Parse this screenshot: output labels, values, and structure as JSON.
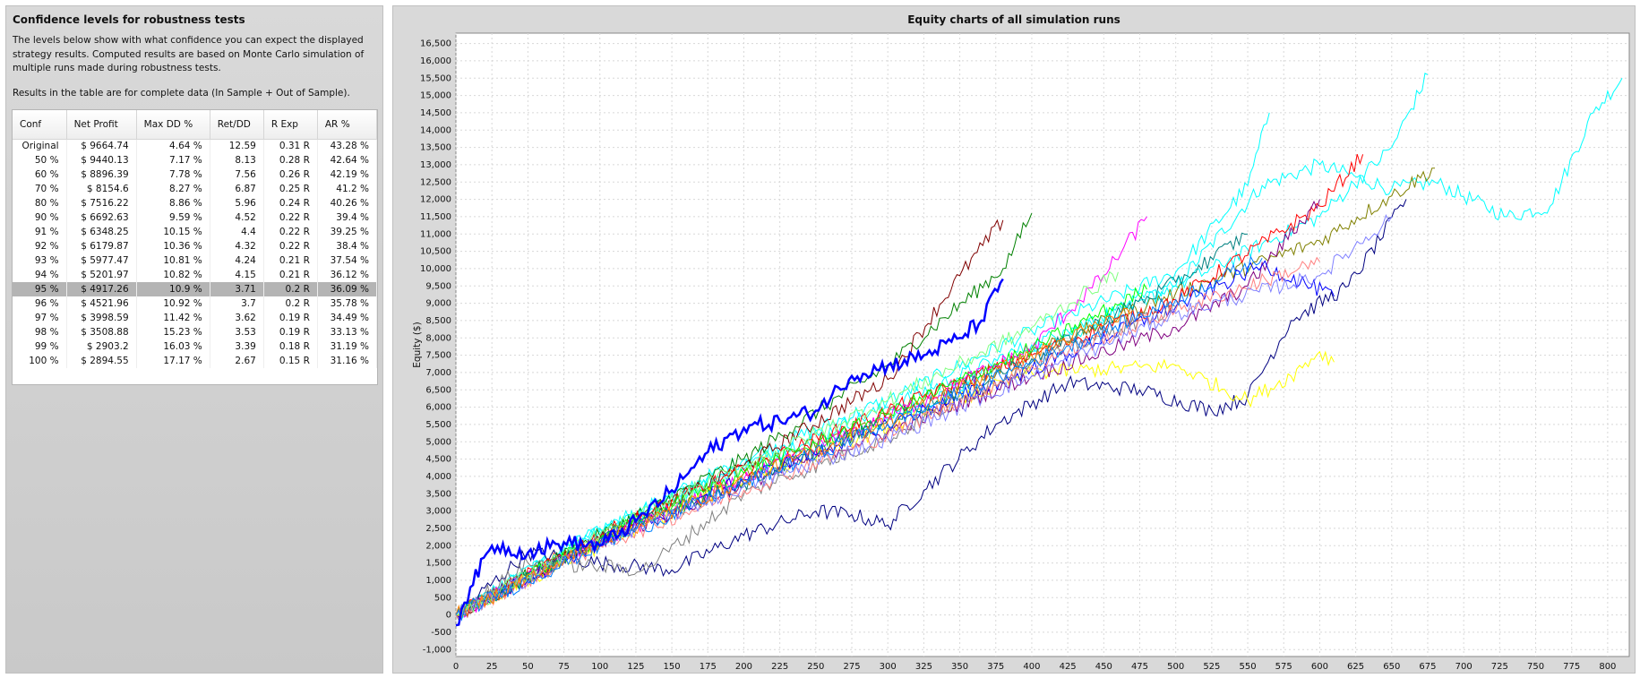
{
  "left": {
    "title": "Confidence levels for robustness tests",
    "description": "The levels below show with what confidence you can expect the displayed strategy results. Computed results are based on Monte Carlo simulation of multiple runs made during robustness tests.",
    "note": "Results in the table are for complete data (In Sample + Out of Sample).",
    "table": {
      "columns": [
        "Conf",
        "Net Profit",
        "Max DD %",
        "Ret/DD",
        "R Exp",
        "AR %"
      ],
      "selected_row": 10,
      "rows": [
        [
          "Original",
          "$ 9664.74",
          "4.64 %",
          "12.59",
          "0.31 R",
          "43.28 %"
        ],
        [
          "50 %",
          "$ 9440.13",
          "7.17 %",
          "8.13",
          "0.28 R",
          "42.64 %"
        ],
        [
          "60 %",
          "$ 8896.39",
          "7.78 %",
          "7.56",
          "0.26 R",
          "42.19 %"
        ],
        [
          "70 %",
          "$ 8154.6",
          "8.27 %",
          "6.87",
          "0.25 R",
          "41.2 %"
        ],
        [
          "80 %",
          "$ 7516.22",
          "8.86 %",
          "5.96",
          "0.24 R",
          "40.26 %"
        ],
        [
          "90 %",
          "$ 6692.63",
          "9.59 %",
          "4.52",
          "0.22 R",
          "39.4 %"
        ],
        [
          "91 %",
          "$ 6348.25",
          "10.15 %",
          "4.4",
          "0.22 R",
          "39.25 %"
        ],
        [
          "92 %",
          "$ 6179.87",
          "10.36 %",
          "4.32",
          "0.22 R",
          "38.4 %"
        ],
        [
          "93 %",
          "$ 5977.47",
          "10.81 %",
          "4.24",
          "0.21 R",
          "37.54 %"
        ],
        [
          "94 %",
          "$ 5201.97",
          "10.82 %",
          "4.15",
          "0.21 R",
          "36.12 %"
        ],
        [
          "95 %",
          "$ 4917.26",
          "10.9 %",
          "3.71",
          "0.2 R",
          "36.09 %"
        ],
        [
          "96 %",
          "$ 4521.96",
          "10.92 %",
          "3.7",
          "0.2 R",
          "35.78 %"
        ],
        [
          "97 %",
          "$ 3998.59",
          "11.42 %",
          "3.62",
          "0.19 R",
          "34.49 %"
        ],
        [
          "98 %",
          "$ 3508.88",
          "15.23 %",
          "3.53",
          "0.19 R",
          "33.13 %"
        ],
        [
          "99 %",
          "$ 2903.2",
          "16.03 %",
          "3.39",
          "0.18 R",
          "31.19 %"
        ],
        [
          "100 %",
          "$ 2894.55",
          "17.17 %",
          "2.67",
          "0.15 R",
          "31.16 %"
        ]
      ]
    }
  },
  "chart": {
    "title": "Equity charts of all simulation runs"
  },
  "chart_data": {
    "type": "line",
    "title": "Equity charts of all simulation runs",
    "xlabel": "",
    "ylabel": "Equity ($)",
    "xlim": [
      0,
      815
    ],
    "ylim": [
      -1200,
      16800
    ],
    "xticks": [
      0,
      25,
      50,
      75,
      100,
      125,
      150,
      175,
      200,
      225,
      250,
      275,
      300,
      325,
      350,
      375,
      400,
      425,
      450,
      475,
      500,
      525,
      550,
      575,
      600,
      625,
      650,
      675,
      700,
      725,
      750,
      775,
      800
    ],
    "yticks": [
      -1000,
      -500,
      0,
      500,
      1000,
      1500,
      2000,
      2500,
      3000,
      3500,
      4000,
      4500,
      5000,
      5500,
      6000,
      6500,
      7000,
      7500,
      8000,
      8500,
      9000,
      9500,
      10000,
      10500,
      11000,
      11500,
      12000,
      12500,
      13000,
      13500,
      14000,
      14500,
      15000,
      15500,
      16000,
      16500
    ],
    "grid": true,
    "highlight_series": {
      "name": "",
      "color": "#0000ff",
      "x": [
        0,
        10,
        25,
        50,
        75,
        100,
        125,
        150,
        175,
        200,
        225,
        250,
        275,
        300,
        325,
        350,
        365,
        380
      ],
      "y": [
        -300,
        800,
        2000,
        1800,
        2100,
        2000,
        2700,
        3600,
        4700,
        5400,
        5600,
        5900,
        6900,
        7200,
        7500,
        8000,
        8500,
        9700
      ]
    },
    "series": [
      {
        "color": "#00ffff",
        "x": [
          0,
          100,
          200,
          300,
          400,
          500,
          560,
          600,
          650,
          680,
          730,
          760,
          790,
          810
        ],
        "y": [
          0,
          2500,
          4200,
          5600,
          7600,
          9500,
          12400,
          13000,
          12300,
          12500,
          11500,
          11800,
          14500,
          15500
        ]
      },
      {
        "color": "#00ffff",
        "x": [
          0,
          100,
          200,
          300,
          400,
          500,
          550,
          565
        ],
        "y": [
          0,
          2400,
          4500,
          6200,
          8200,
          9900,
          12400,
          14500
        ]
      },
      {
        "color": "#00ffff",
        "x": [
          0,
          100,
          200,
          300,
          400,
          500,
          600,
          650,
          675
        ],
        "y": [
          0,
          2500,
          4300,
          6000,
          7800,
          9500,
          11500,
          13500,
          15600
        ]
      },
      {
        "color": "#000080",
        "x": [
          0,
          50,
          100,
          150,
          200,
          250,
          275,
          300,
          325,
          375,
          425,
          475,
          525,
          550,
          580,
          620,
          660
        ],
        "y": [
          0,
          1800,
          1500,
          1300,
          2300,
          3000,
          2900,
          2600,
          3600,
          5500,
          6700,
          6500,
          5900,
          6300,
          8500,
          9500,
          12000
        ]
      },
      {
        "color": "#008000",
        "x": [
          0,
          100,
          200,
          300,
          380,
          400
        ],
        "y": [
          0,
          2300,
          4500,
          7200,
          10000,
          11600
        ]
      },
      {
        "color": "#800000",
        "x": [
          0,
          100,
          200,
          300,
          350,
          380
        ],
        "y": [
          0,
          2200,
          4300,
          6800,
          9800,
          11400
        ]
      },
      {
        "color": "#808000",
        "x": [
          0,
          100,
          200,
          300,
          400,
          500,
          600,
          650,
          680
        ],
        "y": [
          0,
          2200,
          4100,
          5800,
          7600,
          9300,
          10800,
          12100,
          12900
        ]
      },
      {
        "color": "#ff0000",
        "x": [
          0,
          100,
          200,
          300,
          400,
          500,
          600,
          630
        ],
        "y": [
          0,
          2300,
          4200,
          5900,
          7500,
          9100,
          11800,
          13300
        ]
      },
      {
        "color": "#ff00ff",
        "x": [
          0,
          100,
          200,
          300,
          400,
          450,
          480
        ],
        "y": [
          0,
          2100,
          3900,
          5700,
          7700,
          9800,
          11500
        ]
      },
      {
        "color": "#ffff00",
        "x": [
          0,
          100,
          200,
          300,
          400,
          500,
          550,
          580,
          600,
          610
        ],
        "y": [
          0,
          2000,
          3900,
          5400,
          7000,
          7200,
          6200,
          6900,
          7600,
          7300
        ]
      },
      {
        "color": "#800080",
        "x": [
          0,
          100,
          200,
          300,
          400,
          500,
          550,
          600
        ],
        "y": [
          0,
          2100,
          3800,
          5300,
          6900,
          8300,
          9500,
          12000
        ]
      },
      {
        "color": "#0000ff",
        "x": [
          0,
          100,
          200,
          300,
          400,
          500,
          560,
          610
        ],
        "y": [
          0,
          2100,
          3900,
          5500,
          7100,
          8900,
          10100,
          9200
        ]
      },
      {
        "color": "#00ff00",
        "x": [
          0,
          100,
          200,
          300,
          400,
          480
        ],
        "y": [
          0,
          2200,
          4100,
          5800,
          7700,
          9400
        ]
      },
      {
        "color": "#808080",
        "x": [
          0,
          50,
          100,
          130,
          200,
          300,
          400,
          500
        ],
        "y": [
          0,
          1500,
          1400,
          1300,
          3500,
          5100,
          7300,
          8900
        ]
      },
      {
        "color": "#008080",
        "x": [
          0,
          100,
          200,
          300,
          400,
          500,
          550
        ],
        "y": [
          0,
          2200,
          3800,
          5600,
          7400,
          9600,
          11000
        ]
      },
      {
        "color": "#ff8080",
        "x": [
          0,
          100,
          200,
          300,
          400,
          500,
          600
        ],
        "y": [
          0,
          2000,
          3600,
          5200,
          7200,
          8800,
          10200
        ]
      },
      {
        "color": "#8080ff",
        "x": [
          0,
          100,
          200,
          300,
          400,
          500,
          600,
          650
        ],
        "y": [
          0,
          2100,
          3700,
          5100,
          6900,
          8700,
          9800,
          11500
        ]
      },
      {
        "color": "#80ff80",
        "x": [
          0,
          100,
          200,
          300,
          400,
          460
        ],
        "y": [
          0,
          2300,
          4300,
          6200,
          8300,
          9900
        ]
      },
      {
        "color": "#ff8000",
        "x": [
          0,
          100,
          200,
          300,
          400,
          470
        ],
        "y": [
          0,
          2100,
          3900,
          5600,
          7500,
          8800
        ]
      },
      {
        "color": "#0080ff",
        "x": [
          0,
          100,
          200,
          300,
          400,
          500,
          560
        ],
        "y": [
          0,
          2000,
          3800,
          5500,
          7300,
          9100,
          10300
        ]
      }
    ]
  }
}
